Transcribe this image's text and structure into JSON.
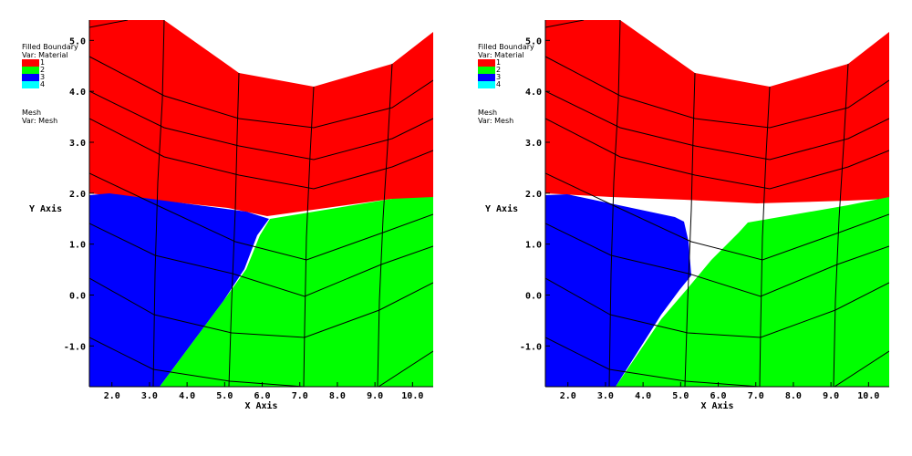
{
  "chart_data": {
    "type": "mesh_plot",
    "xlabel": "X Axis",
    "ylabel": "Y Axis",
    "x_ticks": [
      "2.0",
      "3.0",
      "4.0",
      "5.0",
      "6.0",
      "7.0",
      "8.0",
      "9.0",
      "10.0"
    ],
    "y_ticks": [
      "5.0",
      "4.0",
      "3.0",
      "2.0",
      "1.0",
      "0.0",
      "-1.0"
    ],
    "xlim": [
      1.4,
      10.55
    ],
    "ylim": [
      -1.8,
      5.4
    ],
    "legend": {
      "boundary_title": "Filled Boundary",
      "boundary_var": "Var: Material",
      "materials": [
        {
          "label": "1",
          "color": "#ff0000"
        },
        {
          "label": "2",
          "color": "#00ff00"
        },
        {
          "label": "3",
          "color": "#0000ff"
        },
        {
          "label": "4",
          "color": "#00ffff"
        }
      ],
      "mesh_title": "Mesh",
      "mesh_var": "Var: Mesh"
    }
  }
}
